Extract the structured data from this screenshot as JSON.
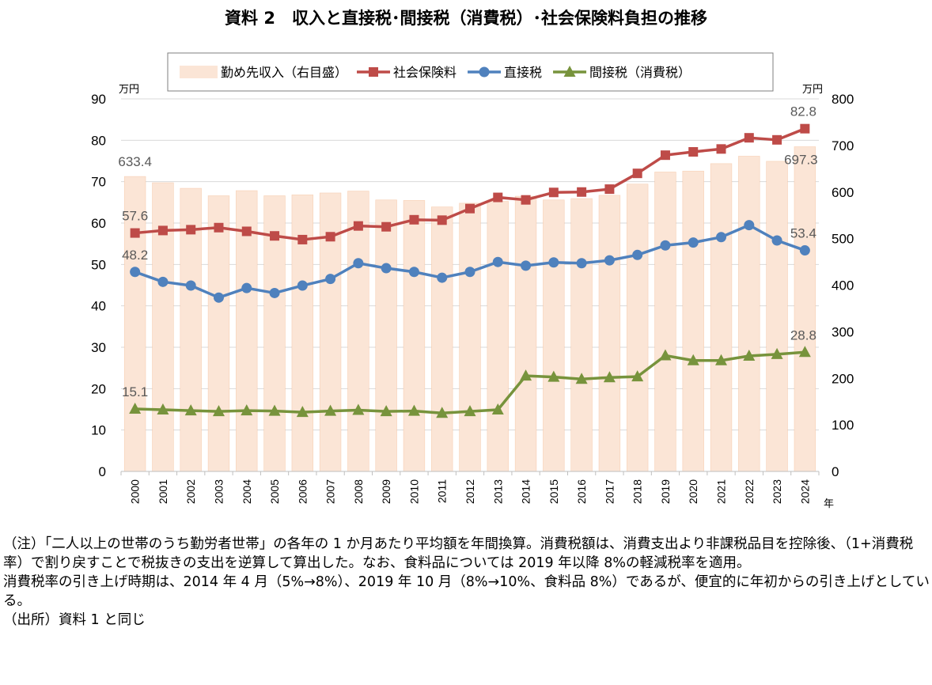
{
  "title": "資料 2　収入と直接税･間接税（消費税）･社会保険料負担の推移",
  "chart_data": {
    "type": "bar+line",
    "categories": [
      "2000",
      "2001",
      "2002",
      "2003",
      "2004",
      "2005",
      "2006",
      "2007",
      "2008",
      "2009",
      "2010",
      "2011",
      "2012",
      "2013",
      "2014",
      "2015",
      "2016",
      "2017",
      "2018",
      "2019",
      "2020",
      "2021",
      "2022",
      "2023",
      "2024"
    ],
    "x_unit": "年",
    "y_left": {
      "unit": "万円",
      "range": [
        0,
        90
      ],
      "ticks": [
        "0",
        "10",
        "20",
        "30",
        "40",
        "50",
        "60",
        "70",
        "80",
        "90"
      ]
    },
    "y_right": {
      "unit": "万円",
      "range": [
        0,
        800
      ],
      "ticks": [
        "0",
        "100",
        "200",
        "300",
        "400",
        "500",
        "600",
        "700",
        "800"
      ]
    },
    "bar_series": {
      "name": "勤め先収入（右目盛）",
      "axis": "right",
      "color": "#FBE5D6",
      "edge_color": "#F4B183",
      "values": [
        633.4,
        620,
        608,
        592,
        603,
        592,
        594,
        598,
        602,
        583,
        582,
        568,
        576,
        580,
        591,
        583,
        586,
        593,
        617,
        643,
        645,
        661,
        677,
        666,
        697.3
      ]
    },
    "line_series": [
      {
        "name": "社会保険料",
        "axis": "left",
        "color": "#BE4B48",
        "marker": "square",
        "values": [
          57.6,
          58.2,
          58.4,
          58.9,
          58.0,
          56.9,
          56.0,
          56.7,
          59.3,
          59.1,
          60.8,
          60.7,
          63.5,
          66.2,
          65.6,
          67.4,
          67.5,
          68.2,
          72.0,
          76.4,
          77.2,
          77.9,
          80.6,
          80.1,
          82.8
        ]
      },
      {
        "name": "直接税",
        "axis": "left",
        "color": "#4F81BD",
        "marker": "circle",
        "values": [
          48.2,
          45.8,
          44.9,
          42.0,
          44.3,
          43.1,
          44.9,
          46.5,
          50.3,
          49.1,
          48.2,
          46.8,
          48.2,
          50.6,
          49.7,
          50.5,
          50.3,
          51.0,
          52.3,
          54.6,
          55.3,
          56.6,
          59.5,
          55.8,
          53.4
        ]
      },
      {
        "name": "間接税（消費税）",
        "axis": "left",
        "color": "#77933C",
        "marker": "triangle",
        "values": [
          15.1,
          14.9,
          14.7,
          14.5,
          14.7,
          14.6,
          14.3,
          14.6,
          14.8,
          14.5,
          14.6,
          14.1,
          14.5,
          14.9,
          23.1,
          22.8,
          22.3,
          22.7,
          22.9,
          28.0,
          26.8,
          26.8,
          27.9,
          28.3,
          28.8
        ]
      }
    ],
    "data_labels": [
      {
        "text": "633.4",
        "series": "勤め先収入（右目盛）",
        "year": "2000"
      },
      {
        "text": "697.3",
        "series": "勤め先収入（右目盛）",
        "year": "2024"
      },
      {
        "text": "57.6",
        "series": "社会保険料",
        "year": "2000"
      },
      {
        "text": "82.8",
        "series": "社会保険料",
        "year": "2024"
      },
      {
        "text": "48.2",
        "series": "直接税",
        "year": "2000"
      },
      {
        "text": "53.4",
        "series": "直接税",
        "year": "2024"
      },
      {
        "text": "15.1",
        "series": "間接税（消費税）",
        "year": "2000"
      },
      {
        "text": "28.8",
        "series": "間接税（消費税）",
        "year": "2024"
      }
    ],
    "grid": "horizontal",
    "legend_position": "top"
  },
  "notes": [
    "（注）「二人以上の世帯のうち勤労者世帯」の各年の 1 か月あたり平均額を年間換算。消費税額は、消費支出より非課税品目を控除後、（1+消費税率）で割り戻すことで税抜きの支出を逆算して算出した。なお、食料品については 2019 年以降 8%の軽減税率を適用。",
    "消費税率の引き上げ時期は、2014 年 4 月（5%→8%）、2019 年 10 月（8%→10%、食料品 8%）であるが、便宜的に年初からの引き上げとしている。",
    "（出所）資料 1 と同じ"
  ]
}
